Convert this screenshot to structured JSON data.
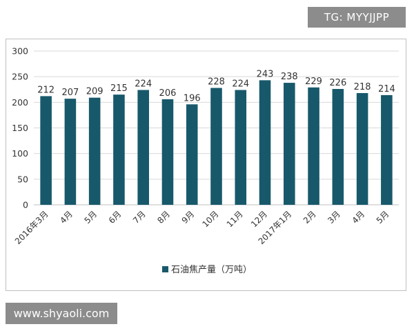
{
  "watermarks": {
    "top": "TG: MYYJJPP",
    "bottom": "www.shyaoli.com"
  },
  "colors": {
    "bar": "#17596b",
    "grid": "#d9d9d9",
    "axis": "#bfbfbf"
  },
  "chart_data": {
    "type": "bar",
    "title": "",
    "xlabel": "",
    "ylabel": "",
    "categories": [
      "2016年3月",
      "4月",
      "5月",
      "6月",
      "7月",
      "8月",
      "9月",
      "10月",
      "11月",
      "12月",
      "2017年1月",
      "2月",
      "3月",
      "4月",
      "5月"
    ],
    "series": [
      {
        "name": "石油焦产量（万吨）",
        "values": [
          212,
          207,
          209,
          215,
          224,
          206,
          196,
          228,
          224,
          243,
          238,
          229,
          226,
          218,
          214
        ]
      }
    ],
    "ylim": [
      0,
      300
    ],
    "yticks": [
      "0",
      "50",
      "100",
      "150",
      "200",
      "250",
      "300"
    ],
    "grid": true,
    "legend": "bottom",
    "data_labels": true
  }
}
